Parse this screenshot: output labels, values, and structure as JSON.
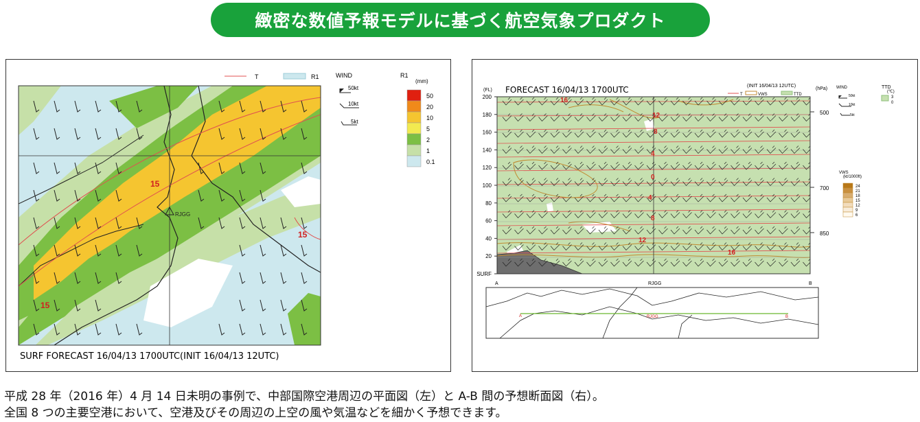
{
  "banner": {
    "title": "緻密な数値予報モデルに基づく航空気象プロダクト"
  },
  "left": {
    "caption": "SURF FORECAST 16/04/13 1700UTC(INIT 16/04/13 12UTC)",
    "legend_t": "T",
    "legend_r1": "R1",
    "wind_title": "WIND",
    "wind_labels": [
      "50kt",
      "10kt",
      "5kt"
    ],
    "r1_title": "R1",
    "r1_unit": "(mm)",
    "r1_levels": [
      "50",
      "20",
      "10",
      "5",
      "2",
      "1",
      "0.1"
    ],
    "r1_colors": [
      "#e02010",
      "#f08a1a",
      "#f5c530",
      "#f2ea50",
      "#7cbf44",
      "#c6e0a8",
      "#cde8ee"
    ],
    "temp_labels": [
      "15",
      "15",
      "15"
    ],
    "station": "RJGG"
  },
  "right": {
    "title": "FORECAST 16/04/13 1700UTC",
    "init": "(INIT 16/04/13 12UTC)",
    "fl_unit": "(FL)",
    "hpa_unit": "(hPa)",
    "fl_ticks": [
      "200",
      "180",
      "160",
      "140",
      "120",
      "100",
      "80",
      "60",
      "40",
      "20",
      "SURF"
    ],
    "hpa_ticks": [
      "500",
      "700",
      "850"
    ],
    "legend": [
      "T",
      "VWS",
      "TTD"
    ],
    "wind_title": "WIND",
    "wind_labels": [
      "50kt",
      "10kt",
      "5kt"
    ],
    "ttd_title": "TTD",
    "ttd_unit": "(℃)",
    "ttd_levels": [
      "3",
      "0"
    ],
    "vws_title": "VWS",
    "vws_unit": "(kt/1000ft)",
    "vws_levels": [
      "24",
      "21",
      "18",
      "15",
      "12",
      "9",
      "6"
    ],
    "vws_colors": [
      "#b87818",
      "#c99040",
      "#d8ad70",
      "#e8c998",
      "#f2dcbc",
      "#f8ecda",
      "#fffaf0"
    ],
    "axis_labels": [
      "A",
      "RJGG",
      "B"
    ],
    "temp_labels": [
      "16",
      "12",
      "8",
      "4",
      "0",
      "4",
      "8",
      "12",
      "16"
    ],
    "map_labels": [
      "A",
      "RJGG",
      "B"
    ]
  },
  "caption": {
    "line1": "平成 28 年（2016 年）4 月 14 日未明の事例で、中部国際空港周辺の平面図（左）と A-B 間の予想断面図（右）。",
    "line2": "全国 8 つの主要空港において、空港及びその周辺の上空の風や気温などを細かく予想できます。"
  },
  "colors": {
    "banner": "#19a23b",
    "temp_line": "#e05050",
    "vws_line": "#c08a30",
    "ttd_fill": "#c6e0b0"
  }
}
